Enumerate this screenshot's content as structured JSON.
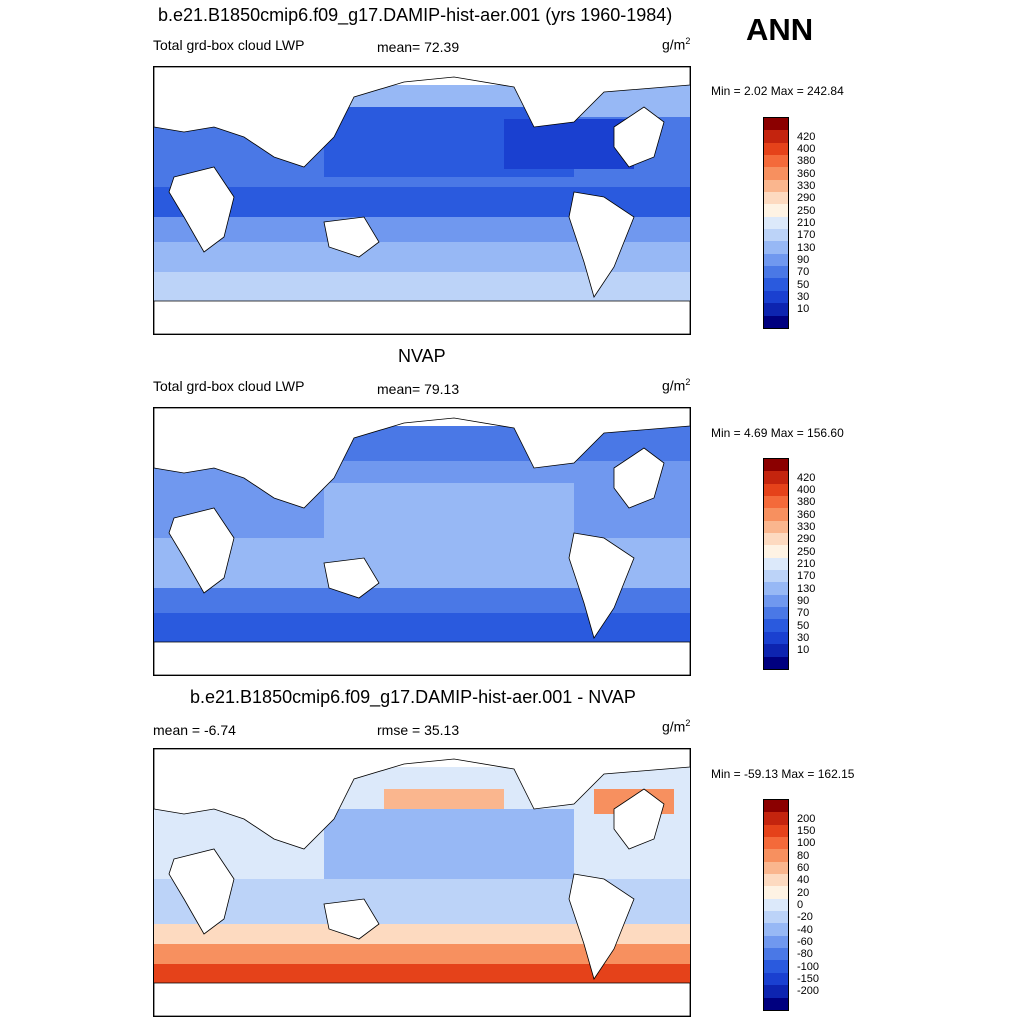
{
  "season": "ANN",
  "panels": [
    {
      "title": "b.e21.B1850cmip6.f09_g17.DAMIP-hist-aer.001 (yrs 1960-1984)",
      "left_label": "Total grd-box cloud LWP",
      "center_label": "mean=  72.39",
      "units": "g/m",
      "units_sup": "2",
      "minmax": "Min =   2.02 Max = 242.84",
      "colorbar": {
        "colors": [
          "#8b0000",
          "#c4240e",
          "#e5421a",
          "#f46a3a",
          "#f7905f",
          "#fab68e",
          "#fddac0",
          "#fef3e4",
          "#dce9fa",
          "#bcd3f8",
          "#97b8f5",
          "#7098ef",
          "#4a78e6",
          "#2a5ade",
          "#1a40d0",
          "#0d24b0",
          "#00007f"
        ],
        "labels": [
          "420",
          "400",
          "380",
          "360",
          "330",
          "290",
          "250",
          "210",
          "170",
          "130",
          "90",
          "70",
          "50",
          "30",
          "10"
        ]
      }
    },
    {
      "title": "NVAP",
      "left_label": "Total grd-box cloud LWP",
      "center_label": "mean=  79.13",
      "units": "g/m",
      "units_sup": "2",
      "minmax": "Min =   4.69 Max = 156.60",
      "colorbar": {
        "colors": [
          "#8b0000",
          "#c4240e",
          "#e5421a",
          "#f46a3a",
          "#f7905f",
          "#fab68e",
          "#fddac0",
          "#fef3e4",
          "#dce9fa",
          "#bcd3f8",
          "#97b8f5",
          "#7098ef",
          "#4a78e6",
          "#2a5ade",
          "#1a40d0",
          "#0d24b0",
          "#00007f"
        ],
        "labels": [
          "420",
          "400",
          "380",
          "360",
          "330",
          "290",
          "250",
          "210",
          "170",
          "130",
          "90",
          "70",
          "50",
          "30",
          "10"
        ]
      }
    },
    {
      "title": "b.e21.B1850cmip6.f09_g17.DAMIP-hist-aer.001 - NVAP",
      "left_label": "mean =  -6.74",
      "center_label": "rmse =  35.13",
      "units": "g/m",
      "units_sup": "2",
      "minmax": "Min = -59.13 Max = 162.15",
      "colorbar": {
        "colors": [
          "#8b0000",
          "#c4240e",
          "#e5421a",
          "#f46a3a",
          "#f7905f",
          "#fab68e",
          "#fddac0",
          "#fef3e4",
          "#dce9fa",
          "#bcd3f8",
          "#97b8f5",
          "#7098ef",
          "#4a78e6",
          "#2a5ade",
          "#1a40d0",
          "#0d24b0",
          "#00007f"
        ],
        "labels": [
          "200",
          "150",
          "100",
          "80",
          "60",
          "40",
          "20",
          "0",
          "-20",
          "-40",
          "-60",
          "-80",
          "-100",
          "-150",
          "-200"
        ]
      }
    }
  ]
}
